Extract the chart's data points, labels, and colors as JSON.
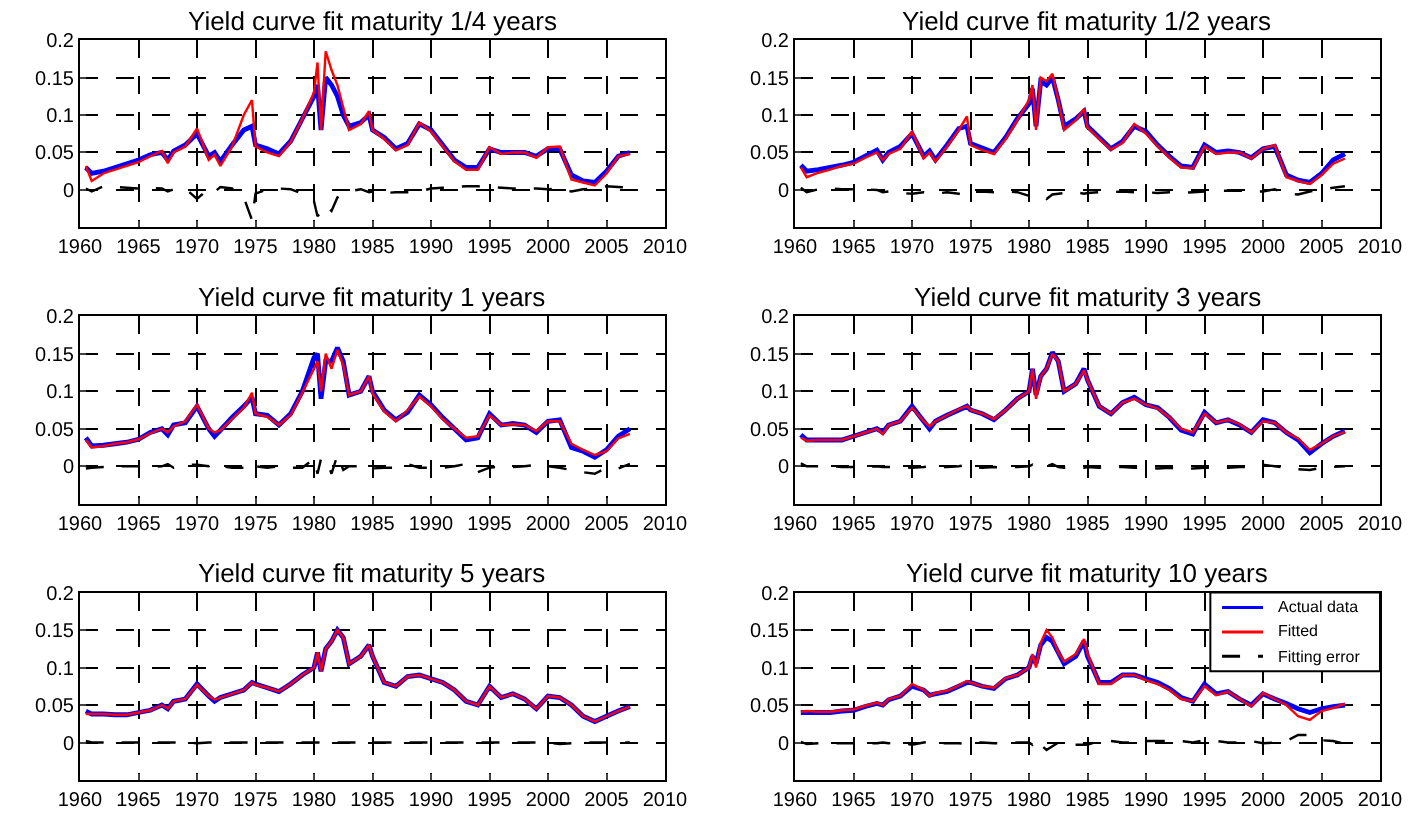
{
  "chart_data": [
    {
      "type": "line",
      "title": "Yield curve fit maturity 1/4 years",
      "xlim": [
        1960,
        2010
      ],
      "xticks": [
        1960,
        1965,
        1970,
        1975,
        1980,
        1985,
        1990,
        1995,
        2000,
        2005,
        2010
      ],
      "ylim": [
        -0.05,
        0.2
      ],
      "yticks": [
        0,
        0.05,
        0.1,
        0.15,
        0.2
      ],
      "grid": true,
      "legend": false,
      "x": [
        1960.5,
        1961,
        1962,
        1963,
        1964,
        1965,
        1966,
        1967,
        1967.5,
        1968,
        1969,
        1970,
        1971,
        1971.5,
        1972,
        1973,
        1974,
        1974.7,
        1975,
        1976,
        1977,
        1978,
        1979,
        1980,
        1980.3,
        1980.6,
        1981,
        1981.5,
        1982,
        1982.5,
        1983,
        1984,
        1984.7,
        1985,
        1986,
        1987,
        1988,
        1989,
        1990,
        1991,
        1992,
        1993,
        1994,
        1995,
        1996,
        1997,
        1998,
        1999,
        2000,
        2001,
        2002,
        2003,
        2004,
        2005,
        2006,
        2007
      ],
      "series": [
        {
          "color": "#0000ff",
          "line_style": "solid",
          "values": [
            0.03,
            0.022,
            0.025,
            0.03,
            0.035,
            0.04,
            0.047,
            0.05,
            0.04,
            0.052,
            0.06,
            0.075,
            0.045,
            0.05,
            0.038,
            0.06,
            0.08,
            0.085,
            0.06,
            0.055,
            0.048,
            0.065,
            0.095,
            0.125,
            0.14,
            0.08,
            0.15,
            0.14,
            0.125,
            0.1,
            0.085,
            0.09,
            0.1,
            0.08,
            0.07,
            0.055,
            0.062,
            0.088,
            0.08,
            0.06,
            0.04,
            0.03,
            0.03,
            0.055,
            0.05,
            0.05,
            0.05,
            0.045,
            0.055,
            0.055,
            0.02,
            0.012,
            0.01,
            0.025,
            0.045,
            0.05
          ]
        },
        {
          "color": "#ff0000",
          "line_style": "solid",
          "values": [
            0.032,
            0.012,
            0.022,
            0.027,
            0.032,
            0.037,
            0.045,
            0.052,
            0.036,
            0.05,
            0.058,
            0.082,
            0.04,
            0.047,
            0.032,
            0.058,
            0.1,
            0.12,
            0.058,
            0.05,
            0.045,
            0.064,
            0.095,
            0.13,
            0.17,
            0.08,
            0.185,
            0.16,
            0.14,
            0.11,
            0.08,
            0.088,
            0.105,
            0.08,
            0.068,
            0.053,
            0.06,
            0.09,
            0.078,
            0.058,
            0.038,
            0.027,
            0.027,
            0.057,
            0.048,
            0.05,
            0.05,
            0.043,
            0.057,
            0.058,
            0.014,
            0.01,
            0.006,
            0.022,
            0.045,
            0.048
          ]
        },
        {
          "color": "#000000",
          "line_style": "dashed",
          "values": [
            0.002,
            -0.002,
            0.005,
            0.004,
            0.003,
            0.002,
            0.003,
            0.002,
            -0.002,
            0.001,
            0.002,
            -0.012,
            0.002,
            -0.003,
            0.004,
            0.002,
            -0.01,
            -0.04,
            -0.005,
            0.001,
            0.002,
            0.001,
            -0.005,
            -0.015,
            -0.035,
            -0.03,
            -0.02,
            -0.028,
            -0.01,
            -0.006,
            -0.002,
            0.001,
            -0.003,
            -0.002,
            -0.004,
            -0.003,
            -0.003,
            -0.002,
            0.002,
            0.003,
            0.004,
            0.005,
            0.005,
            0.004,
            0.003,
            0.002,
            0.002,
            0.002,
            0.001,
            0.002,
            -0.002,
            0.001,
            0.002,
            0.005,
            0.004,
            0.003
          ]
        }
      ]
    },
    {
      "type": "line",
      "title": "Yield curve fit maturity 1/2 years",
      "xlim": [
        1960,
        2010
      ],
      "xticks": [
        1960,
        1965,
        1970,
        1975,
        1980,
        1985,
        1990,
        1995,
        2000,
        2005,
        2010
      ],
      "ylim": [
        -0.05,
        0.2
      ],
      "yticks": [
        0,
        0.05,
        0.1,
        0.15,
        0.2
      ],
      "grid": true,
      "legend": false,
      "x": [
        1960.5,
        1961,
        1962,
        1963,
        1964,
        1965,
        1966,
        1967,
        1967.5,
        1968,
        1969,
        1970,
        1971,
        1971.5,
        1972,
        1973,
        1974,
        1974.7,
        1975,
        1976,
        1977,
        1978,
        1979,
        1980,
        1980.3,
        1980.6,
        1981,
        1981.5,
        1982,
        1982.5,
        1983,
        1984,
        1984.7,
        1985,
        1986,
        1987,
        1988,
        1989,
        1990,
        1991,
        1992,
        1993,
        1994,
        1995,
        1996,
        1997,
        1998,
        1999,
        2000,
        2001,
        2002,
        2003,
        2004,
        2005,
        2006,
        2007
      ],
      "series": [
        {
          "color": "#0000ff",
          "line_style": "solid",
          "values": [
            0.033,
            0.025,
            0.027,
            0.03,
            0.033,
            0.037,
            0.045,
            0.053,
            0.04,
            0.05,
            0.058,
            0.075,
            0.045,
            0.052,
            0.04,
            0.06,
            0.082,
            0.085,
            0.062,
            0.056,
            0.05,
            0.07,
            0.095,
            0.115,
            0.135,
            0.085,
            0.145,
            0.14,
            0.15,
            0.12,
            0.085,
            0.095,
            0.105,
            0.085,
            0.07,
            0.055,
            0.065,
            0.085,
            0.078,
            0.06,
            0.045,
            0.032,
            0.03,
            0.06,
            0.05,
            0.052,
            0.05,
            0.043,
            0.055,
            0.058,
            0.02,
            0.013,
            0.01,
            0.022,
            0.04,
            0.048
          ]
        },
        {
          "color": "#ff0000",
          "line_style": "solid",
          "values": [
            0.03,
            0.017,
            0.023,
            0.027,
            0.032,
            0.035,
            0.043,
            0.05,
            0.04,
            0.048,
            0.055,
            0.078,
            0.042,
            0.05,
            0.038,
            0.058,
            0.08,
            0.098,
            0.06,
            0.053,
            0.048,
            0.068,
            0.093,
            0.12,
            0.14,
            0.08,
            0.15,
            0.145,
            0.155,
            0.12,
            0.08,
            0.093,
            0.108,
            0.083,
            0.068,
            0.054,
            0.063,
            0.088,
            0.075,
            0.058,
            0.043,
            0.03,
            0.029,
            0.058,
            0.048,
            0.05,
            0.05,
            0.042,
            0.055,
            0.06,
            0.017,
            0.012,
            0.008,
            0.02,
            0.035,
            0.042
          ]
        },
        {
          "color": "#000000",
          "line_style": "dashed",
          "values": [
            0.003,
            -0.003,
            0.001,
            0.002,
            0.001,
            0.001,
            0.001,
            0.0,
            -0.003,
            -0.002,
            -0.004,
            -0.005,
            -0.003,
            -0.004,
            -0.005,
            -0.003,
            -0.005,
            -0.008,
            -0.003,
            -0.002,
            -0.003,
            -0.002,
            -0.003,
            -0.008,
            -0.01,
            -0.01,
            -0.008,
            -0.012,
            -0.006,
            -0.005,
            -0.004,
            -0.003,
            -0.005,
            -0.004,
            -0.003,
            -0.003,
            -0.002,
            -0.003,
            -0.003,
            -0.004,
            -0.003,
            -0.004,
            -0.003,
            -0.002,
            -0.001,
            -0.001,
            -0.001,
            -0.002,
            -0.002,
            0.001,
            -0.005,
            -0.006,
            -0.002,
            0.0,
            0.003,
            0.005
          ]
        }
      ]
    },
    {
      "type": "line",
      "title": "Yield curve fit maturity 1 years",
      "xlim": [
        1960,
        2010
      ],
      "xticks": [
        1960,
        1965,
        1970,
        1975,
        1980,
        1985,
        1990,
        1995,
        2000,
        2005,
        2010
      ],
      "ylim": [
        -0.05,
        0.2
      ],
      "yticks": [
        0,
        0.05,
        0.1,
        0.15,
        0.2
      ],
      "grid": true,
      "legend": false,
      "x": [
        1960.5,
        1961,
        1962,
        1963,
        1964,
        1965,
        1966,
        1967,
        1967.5,
        1968,
        1969,
        1970,
        1971,
        1971.5,
        1972,
        1973,
        1974,
        1974.7,
        1975,
        1976,
        1977,
        1978,
        1979,
        1980,
        1980.3,
        1980.6,
        1981,
        1981.5,
        1982,
        1982.5,
        1983,
        1984,
        1984.7,
        1985,
        1986,
        1987,
        1988,
        1989,
        1990,
        1991,
        1992,
        1993,
        1994,
        1995,
        1996,
        1997,
        1998,
        1999,
        2000,
        2001,
        2002,
        2003,
        2004,
        2005,
        2006,
        2007
      ],
      "series": [
        {
          "color": "#0000ff",
          "line_style": "solid",
          "values": [
            0.038,
            0.027,
            0.028,
            0.03,
            0.032,
            0.036,
            0.045,
            0.05,
            0.042,
            0.055,
            0.058,
            0.08,
            0.05,
            0.04,
            0.048,
            0.065,
            0.08,
            0.092,
            0.07,
            0.068,
            0.055,
            0.07,
            0.1,
            0.145,
            0.15,
            0.09,
            0.14,
            0.14,
            0.158,
            0.14,
            0.095,
            0.1,
            0.12,
            0.1,
            0.075,
            0.062,
            0.072,
            0.095,
            0.082,
            0.065,
            0.05,
            0.035,
            0.038,
            0.07,
            0.055,
            0.057,
            0.055,
            0.045,
            0.06,
            0.062,
            0.025,
            0.02,
            0.012,
            0.022,
            0.04,
            0.05
          ]
        },
        {
          "color": "#ff0000",
          "line_style": "solid",
          "values": [
            0.035,
            0.025,
            0.027,
            0.03,
            0.032,
            0.036,
            0.044,
            0.05,
            0.045,
            0.053,
            0.06,
            0.082,
            0.05,
            0.045,
            0.048,
            0.063,
            0.078,
            0.098,
            0.07,
            0.066,
            0.055,
            0.068,
            0.098,
            0.13,
            0.14,
            0.1,
            0.15,
            0.13,
            0.155,
            0.135,
            0.095,
            0.1,
            0.12,
            0.097,
            0.073,
            0.06,
            0.075,
            0.093,
            0.08,
            0.063,
            0.05,
            0.038,
            0.04,
            0.068,
            0.055,
            0.056,
            0.055,
            0.047,
            0.06,
            0.06,
            0.03,
            0.022,
            0.015,
            0.02,
            0.037,
            0.043
          ]
        },
        {
          "color": "#000000",
          "line_style": "dashed",
          "values": [
            -0.003,
            -0.002,
            -0.001,
            0.0,
            0.0,
            0.0,
            -0.001,
            0.0,
            0.003,
            -0.002,
            0.002,
            0.002,
            0.0,
            0.005,
            0.0,
            -0.002,
            -0.002,
            0.006,
            0.0,
            -0.002,
            0.0,
            -0.002,
            -0.002,
            0.01,
            -0.01,
            0.01,
            0.01,
            -0.01,
            0.015,
            -0.005,
            0.0,
            0.0,
            0.0,
            -0.003,
            -0.002,
            -0.002,
            0.003,
            -0.002,
            -0.002,
            -0.002,
            0.0,
            0.003,
            -0.008,
            -0.002,
            0.0,
            -0.001,
            0.0,
            0.002,
            0.0,
            -0.002,
            -0.005,
            -0.008,
            -0.01,
            -0.002,
            -0.003,
            0.003
          ]
        }
      ]
    },
    {
      "type": "line",
      "title": "Yield curve fit maturity 3 years",
      "xlim": [
        1960,
        2010
      ],
      "xticks": [
        1960,
        1965,
        1970,
        1975,
        1980,
        1985,
        1990,
        1995,
        2000,
        2005,
        2010
      ],
      "ylim": [
        -0.05,
        0.2
      ],
      "yticks": [
        0,
        0.05,
        0.1,
        0.15,
        0.2
      ],
      "grid": true,
      "legend": false,
      "x": [
        1960.5,
        1961,
        1962,
        1963,
        1964,
        1965,
        1966,
        1967,
        1967.5,
        1968,
        1969,
        1970,
        1971,
        1971.5,
        1972,
        1973,
        1974,
        1974.7,
        1975,
        1976,
        1977,
        1978,
        1979,
        1980,
        1980.3,
        1980.6,
        1981,
        1981.5,
        1982,
        1982.5,
        1983,
        1984,
        1984.7,
        1985,
        1986,
        1987,
        1988,
        1989,
        1990,
        1991,
        1992,
        1993,
        1994,
        1995,
        1996,
        1997,
        1998,
        1999,
        2000,
        2001,
        2002,
        2003,
        2004,
        2005,
        2006,
        2007
      ],
      "series": [
        {
          "color": "#0000ff",
          "line_style": "solid",
          "values": [
            0.042,
            0.035,
            0.035,
            0.035,
            0.035,
            0.04,
            0.045,
            0.05,
            0.045,
            0.055,
            0.06,
            0.08,
            0.06,
            0.05,
            0.06,
            0.068,
            0.075,
            0.08,
            0.075,
            0.07,
            0.062,
            0.075,
            0.09,
            0.1,
            0.13,
            0.095,
            0.12,
            0.13,
            0.152,
            0.14,
            0.1,
            0.11,
            0.13,
            0.115,
            0.08,
            0.07,
            0.085,
            0.092,
            0.082,
            0.078,
            0.065,
            0.048,
            0.043,
            0.072,
            0.058,
            0.062,
            0.055,
            0.045,
            0.062,
            0.058,
            0.045,
            0.035,
            0.018,
            0.03,
            0.04,
            0.047
          ]
        },
        {
          "color": "#ff0000",
          "line_style": "solid",
          "values": [
            0.038,
            0.034,
            0.035,
            0.035,
            0.035,
            0.04,
            0.045,
            0.05,
            0.043,
            0.055,
            0.06,
            0.078,
            0.06,
            0.053,
            0.06,
            0.068,
            0.076,
            0.08,
            0.075,
            0.07,
            0.063,
            0.075,
            0.09,
            0.1,
            0.13,
            0.09,
            0.12,
            0.13,
            0.15,
            0.14,
            0.1,
            0.11,
            0.128,
            0.115,
            0.08,
            0.07,
            0.085,
            0.09,
            0.082,
            0.077,
            0.065,
            0.05,
            0.045,
            0.07,
            0.058,
            0.062,
            0.056,
            0.045,
            0.06,
            0.058,
            0.045,
            0.037,
            0.022,
            0.03,
            0.04,
            0.046
          ]
        },
        {
          "color": "#000000",
          "line_style": "dashed",
          "values": [
            0.004,
            0.0,
            0.0,
            0.0,
            -0.001,
            -0.001,
            -0.001,
            0.0,
            -0.001,
            -0.001,
            -0.001,
            -0.002,
            -0.001,
            0.0,
            -0.001,
            -0.001,
            0.0,
            0.002,
            -0.001,
            -0.002,
            -0.001,
            -0.002,
            -0.001,
            0.0,
            0.002,
            -0.002,
            0.002,
            0.0,
            0.003,
            -0.001,
            -0.002,
            -0.002,
            -0.002,
            -0.001,
            -0.002,
            -0.001,
            -0.001,
            -0.002,
            -0.002,
            -0.003,
            -0.002,
            -0.004,
            -0.003,
            -0.002,
            -0.002,
            -0.002,
            -0.001,
            -0.001,
            0.002,
            0.0,
            -0.002,
            -0.004,
            -0.005,
            -0.002,
            -0.001,
            0.0
          ]
        }
      ]
    },
    {
      "type": "line",
      "title": "Yield curve fit maturity 5 years",
      "xlim": [
        1960,
        2010
      ],
      "xticks": [
        1960,
        1965,
        1970,
        1975,
        1980,
        1985,
        1990,
        1995,
        2000,
        2005,
        2010
      ],
      "ylim": [
        -0.05,
        0.2
      ],
      "yticks": [
        0,
        0.05,
        0.1,
        0.15,
        0.2
      ],
      "grid": true,
      "legend": false,
      "x": [
        1960.5,
        1961,
        1962,
        1963,
        1964,
        1965,
        1966,
        1967,
        1967.5,
        1968,
        1969,
        1970,
        1971,
        1971.5,
        1972,
        1973,
        1974,
        1974.7,
        1975,
        1976,
        1977,
        1978,
        1979,
        1980,
        1980.3,
        1980.6,
        1981,
        1981.5,
        1982,
        1982.5,
        1983,
        1984,
        1984.7,
        1985,
        1986,
        1987,
        1988,
        1989,
        1990,
        1991,
        1992,
        1993,
        1994,
        1995,
        1996,
        1997,
        1998,
        1999,
        2000,
        2001,
        2002,
        2003,
        2004,
        2005,
        2006,
        2007
      ],
      "series": [
        {
          "color": "#0000ff",
          "line_style": "solid",
          "values": [
            0.042,
            0.038,
            0.038,
            0.037,
            0.037,
            0.04,
            0.043,
            0.05,
            0.045,
            0.055,
            0.058,
            0.078,
            0.062,
            0.055,
            0.06,
            0.065,
            0.07,
            0.08,
            0.078,
            0.073,
            0.068,
            0.078,
            0.09,
            0.1,
            0.12,
            0.095,
            0.125,
            0.135,
            0.15,
            0.14,
            0.105,
            0.115,
            0.13,
            0.115,
            0.08,
            0.075,
            0.088,
            0.09,
            0.085,
            0.08,
            0.07,
            0.055,
            0.05,
            0.075,
            0.06,
            0.065,
            0.058,
            0.045,
            0.062,
            0.06,
            0.05,
            0.035,
            0.028,
            0.035,
            0.042,
            0.048
          ]
        },
        {
          "color": "#ff0000",
          "line_style": "solid",
          "values": [
            0.038,
            0.038,
            0.038,
            0.037,
            0.037,
            0.04,
            0.043,
            0.05,
            0.045,
            0.055,
            0.058,
            0.077,
            0.062,
            0.057,
            0.06,
            0.065,
            0.07,
            0.08,
            0.077,
            0.073,
            0.068,
            0.078,
            0.09,
            0.1,
            0.12,
            0.095,
            0.125,
            0.135,
            0.15,
            0.14,
            0.105,
            0.115,
            0.13,
            0.115,
            0.08,
            0.075,
            0.088,
            0.09,
            0.085,
            0.08,
            0.07,
            0.055,
            0.05,
            0.075,
            0.06,
            0.065,
            0.058,
            0.045,
            0.062,
            0.06,
            0.05,
            0.035,
            0.028,
            0.035,
            0.042,
            0.048
          ]
        },
        {
          "color": "#000000",
          "line_style": "dashed",
          "values": [
            0.002,
            0.0,
            0.0,
            0.0,
            0.0,
            0.0,
            0.0,
            0.0,
            0.0,
            0.0,
            0.0,
            -0.001,
            0.0,
            0.0,
            0.0,
            0.0,
            0.0,
            0.0,
            -0.001,
            0.0,
            0.0,
            0.0,
            0.0,
            0.0,
            0.0,
            0.0,
            0.0,
            0.0,
            0.0,
            0.0,
            0.0,
            0.0,
            0.0,
            0.0,
            0.0,
            0.0,
            0.0,
            0.0,
            0.0,
            0.0,
            0.0,
            0.0,
            0.0,
            0.0,
            0.0,
            0.0,
            0.0,
            0.0,
            0.0,
            -0.002,
            -0.001,
            0.0,
            0.0,
            0.0,
            0.0,
            0.0
          ]
        }
      ]
    },
    {
      "type": "line",
      "title": "Yield curve fit maturity 10 years",
      "xlim": [
        1960,
        2010
      ],
      "xticks": [
        1960,
        1965,
        1970,
        1975,
        1980,
        1985,
        1990,
        1995,
        2000,
        2005,
        2010
      ],
      "ylim": [
        -0.05,
        0.2
      ],
      "yticks": [
        0,
        0.05,
        0.1,
        0.15,
        0.2
      ],
      "grid": true,
      "legend": "top right",
      "x": [
        1960.5,
        1961,
        1962,
        1963,
        1964,
        1965,
        1966,
        1967,
        1967.5,
        1968,
        1969,
        1970,
        1971,
        1971.5,
        1972,
        1973,
        1974,
        1974.7,
        1975,
        1976,
        1977,
        1978,
        1979,
        1980,
        1980.3,
        1980.6,
        1981,
        1981.5,
        1982,
        1982.5,
        1983,
        1984,
        1984.7,
        1985,
        1986,
        1987,
        1988,
        1989,
        1990,
        1991,
        1992,
        1993,
        1994,
        1995,
        1996,
        1997,
        1998,
        1999,
        2000,
        2001,
        2002,
        2003,
        2004,
        2005,
        2006,
        2007
      ],
      "series": [
        {
          "name": "Actual data",
          "color": "#0000ff",
          "line_style": "solid",
          "values": [
            0.04,
            0.04,
            0.04,
            0.04,
            0.042,
            0.043,
            0.048,
            0.052,
            0.05,
            0.057,
            0.062,
            0.075,
            0.07,
            0.063,
            0.065,
            0.068,
            0.075,
            0.08,
            0.08,
            0.075,
            0.072,
            0.085,
            0.09,
            0.1,
            0.115,
            0.105,
            0.13,
            0.14,
            0.135,
            0.12,
            0.105,
            0.115,
            0.135,
            0.115,
            0.08,
            0.08,
            0.09,
            0.09,
            0.085,
            0.08,
            0.072,
            0.06,
            0.055,
            0.078,
            0.065,
            0.068,
            0.058,
            0.05,
            0.065,
            0.058,
            0.052,
            0.045,
            0.04,
            0.045,
            0.048,
            0.05
          ]
        },
        {
          "name": "Fitted",
          "color": "#ff0000",
          "line_style": "solid",
          "values": [
            0.041,
            0.042,
            0.041,
            0.041,
            0.043,
            0.044,
            0.049,
            0.053,
            0.05,
            0.058,
            0.062,
            0.078,
            0.07,
            0.062,
            0.066,
            0.069,
            0.076,
            0.082,
            0.08,
            0.075,
            0.073,
            0.086,
            0.09,
            0.1,
            0.118,
            0.1,
            0.133,
            0.15,
            0.14,
            0.12,
            0.108,
            0.118,
            0.138,
            0.118,
            0.078,
            0.078,
            0.09,
            0.09,
            0.083,
            0.078,
            0.07,
            0.058,
            0.055,
            0.075,
            0.063,
            0.068,
            0.058,
            0.048,
            0.066,
            0.058,
            0.05,
            0.035,
            0.03,
            0.042,
            0.046,
            0.052
          ]
        },
        {
          "name": "Fitting error",
          "color": "#000000",
          "line_style": "dashed",
          "values": [
            0.001,
            -0.002,
            -0.001,
            -0.001,
            -0.001,
            -0.001,
            -0.001,
            -0.001,
            0.0,
            -0.001,
            0.0,
            -0.003,
            0.0,
            0.001,
            -0.001,
            -0.001,
            -0.001,
            -0.002,
            0.0,
            0.0,
            -0.001,
            -0.001,
            0.0,
            0.0,
            -0.003,
            0.005,
            -0.003,
            -0.01,
            -0.005,
            0.0,
            -0.003,
            -0.003,
            -0.003,
            -0.003,
            0.002,
            0.002,
            0.0,
            0.0,
            0.002,
            0.002,
            0.002,
            0.002,
            0.0,
            0.003,
            0.002,
            0.0,
            0.0,
            0.002,
            -0.001,
            0.0,
            0.002,
            0.01,
            0.01,
            0.003,
            0.002,
            -0.002
          ]
        }
      ]
    }
  ]
}
